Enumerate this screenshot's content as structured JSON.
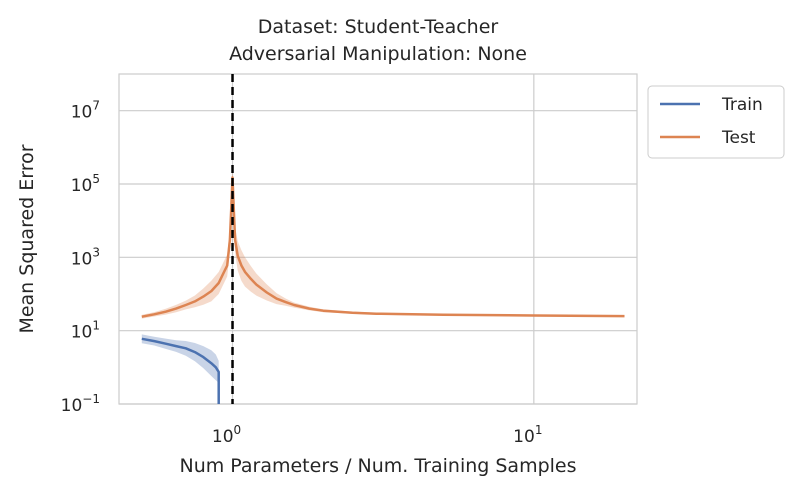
{
  "chart_data": {
    "type": "line",
    "title": [
      "Dataset: Student-Teacher",
      "Adversarial Manipulation: None"
    ],
    "xlabel": "Num Parameters / Num. Training Samples",
    "ylabel": "Mean Squared Error",
    "xscale": "log",
    "yscale": "log",
    "xlim": [
      0.42,
      22
    ],
    "ylim": [
      0.1,
      100000000
    ],
    "x_ticks": [
      {
        "value": 1,
        "base": "10",
        "exp": "0"
      },
      {
        "value": 10,
        "base": "10",
        "exp": "1"
      }
    ],
    "y_ticks": [
      {
        "value": 0.1,
        "base": "10",
        "exp": "−1"
      },
      {
        "value": 10,
        "base": "10",
        "exp": "1"
      },
      {
        "value": 1000,
        "base": "10",
        "exp": "3"
      },
      {
        "value": 100000,
        "base": "10",
        "exp": "5"
      },
      {
        "value": 10000000,
        "base": "10",
        "exp": "7"
      }
    ],
    "grid": true,
    "vline": {
      "x": 1.0,
      "style": "dashed",
      "color": "#000000"
    },
    "legend": {
      "placement": "outside-top-right"
    },
    "series": [
      {
        "name": "Train",
        "color": "#4c72b0",
        "x": [
          0.5,
          0.55,
          0.6,
          0.65,
          0.7,
          0.75,
          0.8,
          0.85,
          0.88,
          0.9,
          0.9,
          0.9
        ],
        "y": [
          6.0,
          5.2,
          4.4,
          3.8,
          3.3,
          2.6,
          1.9,
          1.3,
          1.0,
          0.75,
          0.3,
          0.1
        ],
        "band": [
          0.12,
          0.12,
          0.14,
          0.16,
          0.2,
          0.25,
          0.3,
          0.35,
          0.35,
          0.3,
          0.3,
          0.3
        ]
      },
      {
        "name": "Test",
        "color": "#dd8452",
        "x": [
          0.5,
          0.55,
          0.6,
          0.65,
          0.7,
          0.75,
          0.8,
          0.85,
          0.9,
          0.93,
          0.96,
          0.98,
          0.99,
          1.0,
          1.01,
          1.02,
          1.04,
          1.07,
          1.1,
          1.15,
          1.2,
          1.3,
          1.4,
          1.5,
          1.6,
          1.8,
          2.0,
          2.5,
          3.0,
          5.0,
          10.0,
          20.0
        ],
        "y": [
          24,
          28,
          33,
          40,
          50,
          63,
          85,
          120,
          200,
          350,
          600,
          3000,
          20000,
          150000,
          20000,
          3000,
          1100,
          600,
          400,
          260,
          180,
          110,
          75,
          60,
          50,
          40,
          35,
          31,
          29,
          27,
          26,
          25
        ],
        "band": [
          0.05,
          0.06,
          0.08,
          0.1,
          0.12,
          0.16,
          0.22,
          0.28,
          0.3,
          0.3,
          0.3,
          0.3,
          0.3,
          0.3,
          0.3,
          0.35,
          0.4,
          0.42,
          0.4,
          0.35,
          0.3,
          0.22,
          0.15,
          0.1,
          0.07,
          0.05,
          0.04,
          0.03,
          0.03,
          0.02,
          0.02,
          0.02
        ]
      }
    ]
  }
}
